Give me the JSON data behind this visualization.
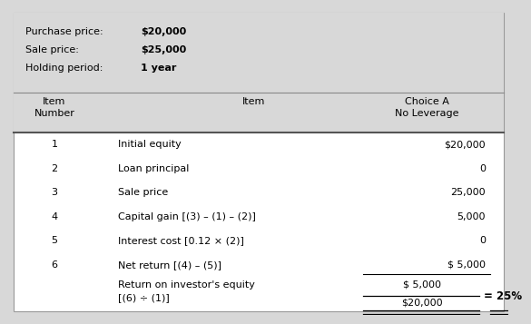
{
  "bg_color": "#d8d8d8",
  "white_bg": "#ffffff",
  "table_bg": "#e8e8e8",
  "header_info": [
    [
      "Purchase price:",
      "$20,000"
    ],
    [
      "Sale price:",
      "$25,000"
    ],
    [
      "Holding period:",
      "1 year"
    ]
  ],
  "col_headers": [
    "Item\nNumber",
    "Item",
    "Choice A\nNo Leverage"
  ],
  "rows": [
    [
      "1",
      "Initial equity",
      "$20,000"
    ],
    [
      "2",
      "Loan principal",
      "0"
    ],
    [
      "3",
      "Sale price",
      "25,000"
    ],
    [
      "4",
      "Capital gain [(3) – (1) – (2)]",
      "5,000"
    ],
    [
      "5",
      "Interest cost [0.12 × (2)]",
      "0"
    ],
    [
      "6",
      "Net return [(4) – (5)]",
      "$ 5,000"
    ]
  ],
  "last_row_label1": "Return on investor's equity",
  "last_row_label2": "[(6) ÷ (1)]",
  "last_row_numerator": "$ 5,000",
  "last_row_denominator": "$20,000",
  "last_row_result": "= 25%",
  "fs": 8.0
}
